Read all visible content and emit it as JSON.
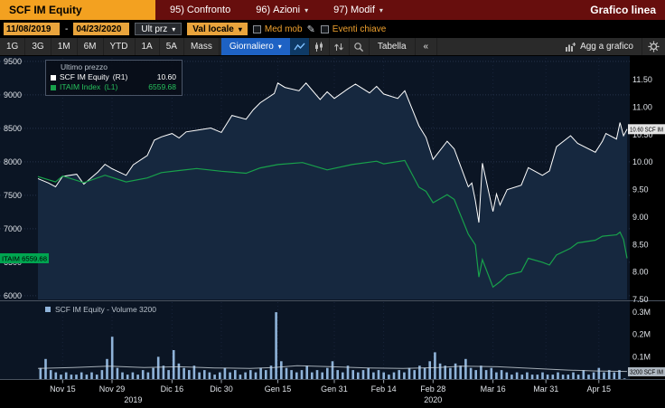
{
  "topbar": {
    "ticker": "SCF IM Equity",
    "menus": [
      {
        "key": "95)",
        "label": "Confronto"
      },
      {
        "key": "96)",
        "label": "Azioni"
      },
      {
        "key": "97)",
        "label": "Modif"
      }
    ],
    "title": "Grafico linea"
  },
  "toolbar": {
    "date_from": "11/08/2019",
    "date_sep": "-",
    "date_to": "04/23/2020",
    "price_field": "Ult prz",
    "currency_field": "Val locale",
    "med_mob_label": "Med mob",
    "eventi_label": "Eventi chiave"
  },
  "controls": {
    "periods": [
      "1G",
      "3G",
      "1M",
      "6M",
      "YTD",
      "1A",
      "5A",
      "Mass"
    ],
    "frequency": "Giornaliero",
    "tabella": "Tabella",
    "collapse": "«",
    "agg": "Agg a grafico"
  },
  "icons": {
    "chevron_down": "▾",
    "pencil": "✎"
  },
  "legend": {
    "title": "Ultimo prezzo",
    "series": [
      {
        "label": "SCF IM Equity",
        "axis": "(R1)",
        "value": "10.60"
      },
      {
        "label": "ITAIM Index",
        "axis": "(L1)",
        "value": "6559.68"
      }
    ]
  },
  "volume_legend": {
    "label": "SCF IM Equity - Volume 3200"
  },
  "badges": {
    "price": "10.60 SCF IM",
    "index": "ITAIM 6559.68",
    "volume": "3200 SCF IM"
  },
  "colors": {
    "amber": "#e9a43c",
    "topbar_red": "#670e0d",
    "accent_blue": "#1e62c4",
    "chart_bg": "#0b1524",
    "price_line": "#ffffff",
    "index_green": "#18a14b",
    "volume_blue": "#8fb3d9"
  },
  "chart_data": {
    "type": "line",
    "title": "Grafico linea",
    "x_range": [
      "2019-11-08",
      "2020-04-23"
    ],
    "right_axis": {
      "label": "SCF IM Equity price",
      "min": 7.5,
      "max": 11.93,
      "ticks": [
        11.5,
        11.0,
        10.5,
        10.0,
        9.5,
        9.0,
        8.5,
        8.0,
        7.5
      ],
      "tick_labels": [
        "11.50",
        "11.00",
        "10.50",
        "10.00",
        "9.50",
        "9.00",
        "8.50",
        "8.00",
        "7.50"
      ]
    },
    "left_axis": {
      "label": "ITAIM Index",
      "min": 5945,
      "max": 9580,
      "ticks": [
        9500,
        9000,
        8500,
        8000,
        7500,
        7000,
        6500,
        6000
      ]
    },
    "volume_axis": {
      "max": 0.345,
      "ticks": [
        0.3,
        0.2,
        0.1
      ],
      "tick_labels": [
        "0.3M",
        "0.2M",
        "0.1M"
      ]
    },
    "series": [
      {
        "name": "SCF IM Equity",
        "axis": "right",
        "last": 10.6,
        "color": "#ffffff",
        "fill": "#16283f",
        "points": [
          [
            "2019-11-08",
            9.7
          ],
          [
            "2019-11-11",
            9.62
          ],
          [
            "2019-11-13",
            9.55
          ],
          [
            "2019-11-15",
            9.74
          ],
          [
            "2019-11-19",
            9.78
          ],
          [
            "2019-11-21",
            9.6
          ],
          [
            "2019-11-25",
            9.82
          ],
          [
            "2019-11-27",
            9.96
          ],
          [
            "2019-11-29",
            9.88
          ],
          [
            "2019-12-03",
            9.76
          ],
          [
            "2019-12-05",
            9.95
          ],
          [
            "2019-12-09",
            10.12
          ],
          [
            "2019-12-11",
            10.4
          ],
          [
            "2019-12-13",
            10.46
          ],
          [
            "2019-12-16",
            10.52
          ],
          [
            "2019-12-18",
            10.44
          ],
          [
            "2019-12-20",
            10.55
          ],
          [
            "2019-12-23",
            10.58
          ],
          [
            "2019-12-27",
            10.62
          ],
          [
            "2019-12-30",
            10.54
          ],
          [
            "2020-01-02",
            10.85
          ],
          [
            "2020-01-06",
            10.78
          ],
          [
            "2020-01-08",
            10.95
          ],
          [
            "2020-01-10",
            11.08
          ],
          [
            "2020-01-14",
            11.25
          ],
          [
            "2020-01-15",
            11.44
          ],
          [
            "2020-01-17",
            11.36
          ],
          [
            "2020-01-21",
            11.3
          ],
          [
            "2020-01-23",
            11.44
          ],
          [
            "2020-01-27",
            11.14
          ],
          [
            "2020-01-29",
            11.28
          ],
          [
            "2020-01-31",
            11.16
          ],
          [
            "2020-02-04",
            11.34
          ],
          [
            "2020-02-06",
            11.42
          ],
          [
            "2020-02-10",
            11.26
          ],
          [
            "2020-02-12",
            11.38
          ],
          [
            "2020-02-14",
            11.24
          ],
          [
            "2020-02-18",
            11.16
          ],
          [
            "2020-02-20",
            11.3
          ],
          [
            "2020-02-24",
            10.66
          ],
          [
            "2020-02-26",
            10.45
          ],
          [
            "2020-02-28",
            10.05
          ],
          [
            "2020-03-03",
            10.38
          ],
          [
            "2020-03-05",
            10.24
          ],
          [
            "2020-03-09",
            9.55
          ],
          [
            "2020-03-10",
            9.62
          ],
          [
            "2020-03-11",
            9.3
          ],
          [
            "2020-03-12",
            8.9
          ],
          [
            "2020-03-13",
            9.98
          ],
          [
            "2020-03-16",
            9.1
          ],
          [
            "2020-03-17",
            9.42
          ],
          [
            "2020-03-18",
            9.22
          ],
          [
            "2020-03-20",
            9.5
          ],
          [
            "2020-03-24",
            9.58
          ],
          [
            "2020-03-26",
            9.9
          ],
          [
            "2020-03-30",
            9.76
          ],
          [
            "2020-04-01",
            9.84
          ],
          [
            "2020-04-03",
            10.28
          ],
          [
            "2020-04-07",
            10.48
          ],
          [
            "2020-04-09",
            10.34
          ],
          [
            "2020-04-14",
            10.18
          ],
          [
            "2020-04-16",
            10.38
          ],
          [
            "2020-04-17",
            10.52
          ],
          [
            "2020-04-20",
            10.42
          ],
          [
            "2020-04-21",
            10.72
          ],
          [
            "2020-04-22",
            10.48
          ],
          [
            "2020-04-23",
            10.6
          ]
        ]
      },
      {
        "name": "ITAIM Index",
        "axis": "left",
        "last": 6559.68,
        "color": "#18a14b",
        "points": [
          [
            "2019-11-08",
            7780
          ],
          [
            "2019-11-13",
            7700
          ],
          [
            "2019-11-15",
            7790
          ],
          [
            "2019-11-21",
            7690
          ],
          [
            "2019-11-27",
            7800
          ],
          [
            "2019-12-03",
            7700
          ],
          [
            "2019-12-09",
            7760
          ],
          [
            "2019-12-13",
            7840
          ],
          [
            "2019-12-18",
            7870
          ],
          [
            "2019-12-23",
            7900
          ],
          [
            "2019-12-30",
            7860
          ],
          [
            "2020-01-06",
            7830
          ],
          [
            "2020-01-10",
            7910
          ],
          [
            "2020-01-15",
            7960
          ],
          [
            "2020-01-22",
            7990
          ],
          [
            "2020-01-29",
            7880
          ],
          [
            "2020-02-05",
            7960
          ],
          [
            "2020-02-12",
            8010
          ],
          [
            "2020-02-14",
            7970
          ],
          [
            "2020-02-20",
            8020
          ],
          [
            "2020-02-24",
            7620
          ],
          [
            "2020-02-26",
            7560
          ],
          [
            "2020-02-28",
            7390
          ],
          [
            "2020-03-03",
            7510
          ],
          [
            "2020-03-05",
            7440
          ],
          [
            "2020-03-09",
            6920
          ],
          [
            "2020-03-11",
            6760
          ],
          [
            "2020-03-12",
            6280
          ],
          [
            "2020-03-13",
            6540
          ],
          [
            "2020-03-16",
            6130
          ],
          [
            "2020-03-18",
            6210
          ],
          [
            "2020-03-20",
            6310
          ],
          [
            "2020-03-24",
            6360
          ],
          [
            "2020-03-26",
            6560
          ],
          [
            "2020-03-30",
            6500
          ],
          [
            "2020-04-01",
            6460
          ],
          [
            "2020-04-03",
            6610
          ],
          [
            "2020-04-07",
            6710
          ],
          [
            "2020-04-09",
            6790
          ],
          [
            "2020-04-14",
            6830
          ],
          [
            "2020-04-16",
            6890
          ],
          [
            "2020-04-20",
            6910
          ],
          [
            "2020-04-21",
            6950
          ],
          [
            "2020-04-22",
            6840
          ],
          [
            "2020-04-23",
            6559.68
          ]
        ]
      }
    ],
    "volume": {
      "name": "SCF IM Equity - Volume",
      "last": 3200,
      "color": "#8fb3d9",
      "values": [
        0.05,
        0.09,
        0.04,
        0.03,
        0.02,
        0.03,
        0.02,
        0.02,
        0.03,
        0.02,
        0.03,
        0.02,
        0.04,
        0.09,
        0.19,
        0.05,
        0.03,
        0.02,
        0.03,
        0.02,
        0.04,
        0.03,
        0.05,
        0.1,
        0.06,
        0.04,
        0.13,
        0.07,
        0.05,
        0.04,
        0.06,
        0.03,
        0.04,
        0.03,
        0.02,
        0.03,
        0.05,
        0.03,
        0.04,
        0.02,
        0.03,
        0.04,
        0.03,
        0.05,
        0.04,
        0.06,
        0.3,
        0.08,
        0.05,
        0.04,
        0.03,
        0.04,
        0.06,
        0.03,
        0.04,
        0.03,
        0.05,
        0.08,
        0.04,
        0.03,
        0.06,
        0.04,
        0.03,
        0.04,
        0.05,
        0.03,
        0.04,
        0.03,
        0.02,
        0.03,
        0.04,
        0.03,
        0.05,
        0.04,
        0.06,
        0.05,
        0.08,
        0.12,
        0.07,
        0.06,
        0.05,
        0.07,
        0.06,
        0.09,
        0.05,
        0.04,
        0.06,
        0.04,
        0.05,
        0.03,
        0.04,
        0.03,
        0.02,
        0.03,
        0.02,
        0.03,
        0.02,
        0.02,
        0.03,
        0.02,
        0.02,
        0.03,
        0.02,
        0.02,
        0.03,
        0.02,
        0.04,
        0.02,
        0.03,
        0.05,
        0.03,
        0.04,
        0.03,
        0.04,
        0.003
      ],
      "ma": [
        [
          0,
          0.048
        ],
        [
          0.06,
          0.052
        ],
        [
          0.12,
          0.058
        ],
        [
          0.18,
          0.052
        ],
        [
          0.24,
          0.055
        ],
        [
          0.3,
          0.05
        ],
        [
          0.36,
          0.048
        ],
        [
          0.4,
          0.052
        ],
        [
          0.44,
          0.06
        ],
        [
          0.5,
          0.055
        ],
        [
          0.56,
          0.05
        ],
        [
          0.62,
          0.048
        ],
        [
          0.68,
          0.052
        ],
        [
          0.72,
          0.058
        ],
        [
          0.78,
          0.055
        ],
        [
          0.84,
          0.048
        ],
        [
          0.9,
          0.04
        ],
        [
          0.95,
          0.036
        ],
        [
          1,
          0.034
        ]
      ]
    },
    "x_ticks": [
      {
        "d": "2019-11-15",
        "label": "Nov 15"
      },
      {
        "d": "2019-11-29",
        "label": "Nov 29"
      },
      {
        "d": "2019-12-16",
        "label": "Dic 16"
      },
      {
        "d": "2019-12-30",
        "label": "Dic 30"
      },
      {
        "d": "2020-01-15",
        "label": "Gen 15"
      },
      {
        "d": "2020-01-31",
        "label": "Gen 31"
      },
      {
        "d": "2020-02-14",
        "label": "Feb 14"
      },
      {
        "d": "2020-02-28",
        "label": "Feb 28"
      },
      {
        "d": "2020-03-16",
        "label": "Mar 16"
      },
      {
        "d": "2020-03-31",
        "label": "Mar 31"
      },
      {
        "d": "2020-04-15",
        "label": "Apr 15"
      }
    ],
    "year_labels": [
      {
        "d": "2019-12-05",
        "label": "2019"
      },
      {
        "d": "2020-02-28",
        "label": "2020"
      }
    ]
  }
}
